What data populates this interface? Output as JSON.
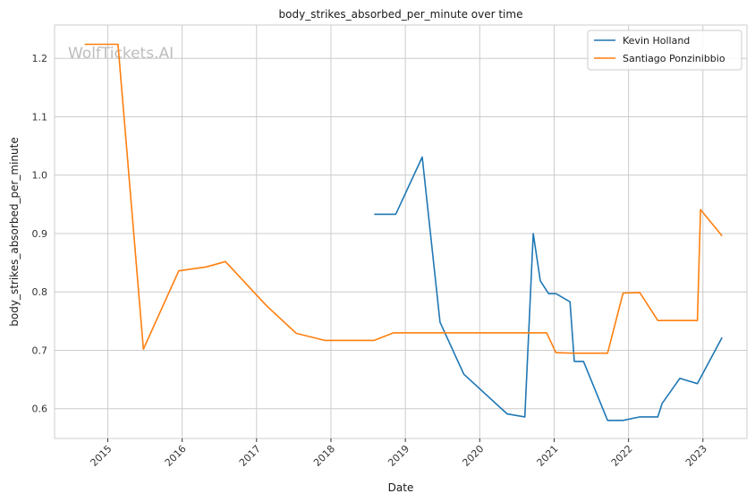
{
  "chart_data": {
    "type": "line",
    "title": "body_strikes_absorbed_per_minute over time",
    "xlabel": "Date",
    "ylabel": "body_strikes_absorbed_per_minute",
    "watermark": "WolfTickets.AI",
    "x_ticks": [
      "2015",
      "2016",
      "2017",
      "2018",
      "2019",
      "2020",
      "2021",
      "2022",
      "2023"
    ],
    "y_ticks": [
      "0.6",
      "0.7",
      "0.8",
      "0.9",
      "1.0",
      "1.1",
      "1.2"
    ],
    "xlim": [
      "2014-04-15",
      "2023-08-05"
    ],
    "ylim": [
      0.549,
      1.257
    ],
    "grid": true,
    "legend_position": "top-right",
    "series": [
      {
        "name": "Kevin Holland",
        "color": "#1f77b4",
        "points": [
          [
            "2018-08-01",
            0.933
          ],
          [
            "2018-11-15",
            0.933
          ],
          [
            "2019-03-25",
            1.031
          ],
          [
            "2019-06-20",
            0.748
          ],
          [
            "2019-10-15",
            0.659
          ],
          [
            "2020-05-15",
            0.591
          ],
          [
            "2020-08-10",
            0.586
          ],
          [
            "2020-09-20",
            0.9
          ],
          [
            "2020-10-25",
            0.819
          ],
          [
            "2020-12-05",
            0.797
          ],
          [
            "2021-01-10",
            0.797
          ],
          [
            "2021-03-20",
            0.783
          ],
          [
            "2021-04-10",
            0.681
          ],
          [
            "2021-05-25",
            0.681
          ],
          [
            "2021-09-20",
            0.58
          ],
          [
            "2021-12-05",
            0.58
          ],
          [
            "2022-02-25",
            0.586
          ],
          [
            "2022-05-25",
            0.586
          ],
          [
            "2022-06-15",
            0.609
          ],
          [
            "2022-09-10",
            0.652
          ],
          [
            "2022-12-05",
            0.643
          ],
          [
            "2023-04-05",
            0.722
          ]
        ]
      },
      {
        "name": "Santiago Ponzinibbio",
        "color": "#ff7f0e",
        "points": [
          [
            "2014-09-10",
            1.224
          ],
          [
            "2015-02-20",
            1.224
          ],
          [
            "2015-06-25",
            0.702
          ],
          [
            "2015-12-15",
            0.836
          ],
          [
            "2016-05-01",
            0.843
          ],
          [
            "2016-08-01",
            0.852
          ],
          [
            "2017-02-20",
            0.776
          ],
          [
            "2017-07-15",
            0.729
          ],
          [
            "2017-12-01",
            0.717
          ],
          [
            "2018-08-01",
            0.717
          ],
          [
            "2018-11-05",
            0.73
          ],
          [
            "2020-11-25",
            0.73
          ],
          [
            "2021-01-10",
            0.696
          ],
          [
            "2021-04-10",
            0.695
          ],
          [
            "2021-09-20",
            0.695
          ],
          [
            "2021-12-05",
            0.798
          ],
          [
            "2022-02-25",
            0.799
          ],
          [
            "2022-05-25",
            0.751
          ],
          [
            "2022-12-05",
            0.751
          ],
          [
            "2022-12-20",
            0.941
          ],
          [
            "2023-04-05",
            0.896
          ]
        ]
      }
    ]
  }
}
